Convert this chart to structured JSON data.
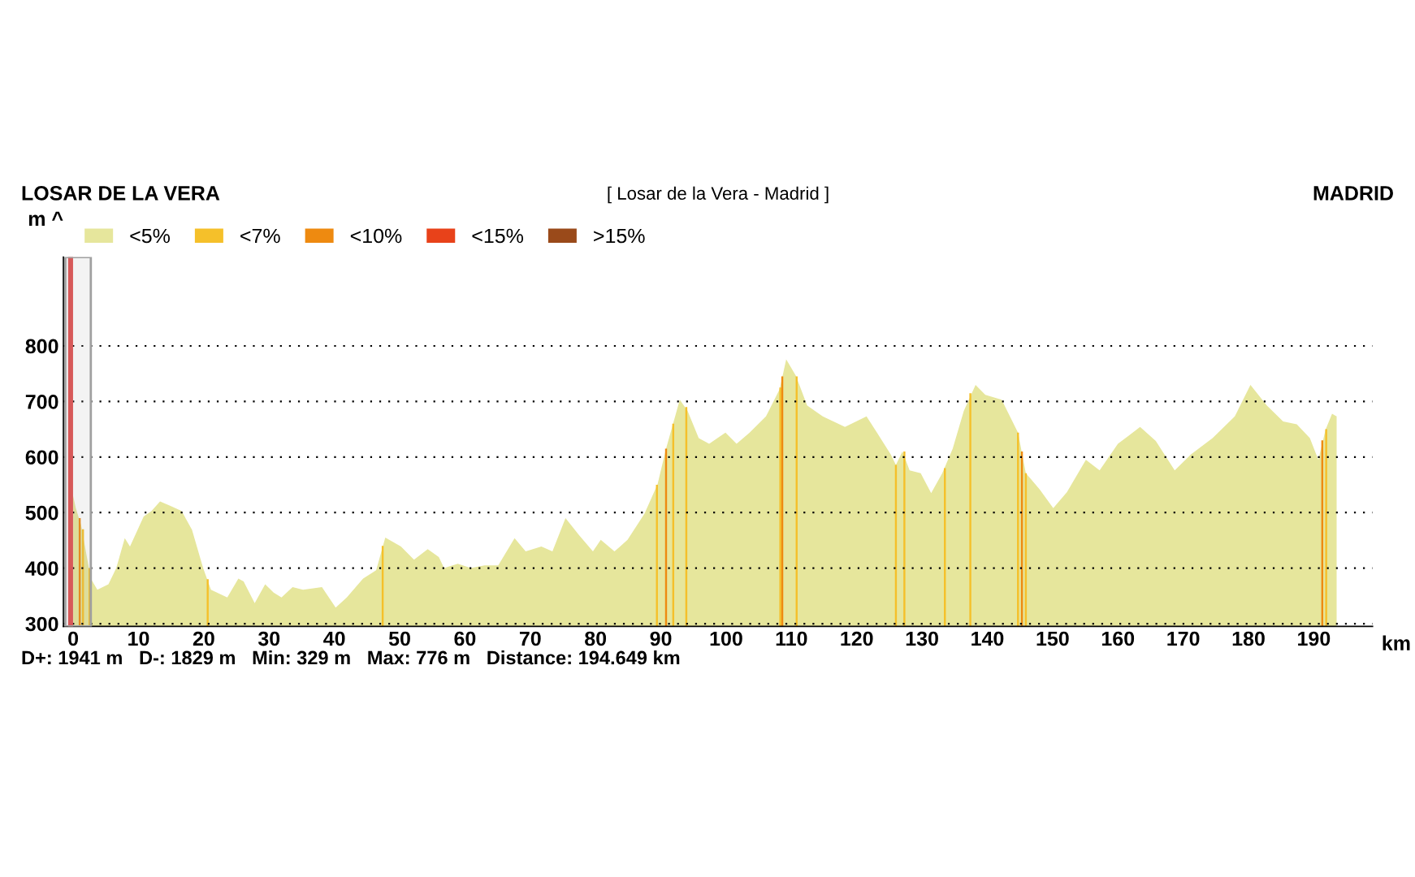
{
  "chart_data": {
    "type": "area",
    "title": "LOSAR DE LA VERA",
    "subtitle": "[ Losar de la Vera - Madrid ]",
    "xlabel": "km",
    "ylabel": "m ^",
    "annotations": [
      "MADRID",
      "D+: 1941 m   D-: 1829 m   Min: 329 m   Max: 776 m   Distance: 194.649 km"
    ],
    "xlim": [
      -1.5,
      199
    ],
    "xticks": [
      0,
      10,
      20,
      30,
      40,
      50,
      60,
      70,
      80,
      90,
      100,
      110,
      120,
      130,
      140,
      150,
      160,
      170,
      180,
      190
    ],
    "ylim": [
      295,
      960
    ],
    "yticks": [
      300,
      400,
      500,
      600,
      700,
      800
    ],
    "grid": "y",
    "legend": "top left",
    "series": [
      {
        "name": "<5%",
        "color": "#e6e69c",
        "x": [
          0,
          0.4,
          1.2,
          2.1,
          2.7,
          3.7,
          5.4,
          6.6,
          7.9,
          8.7,
          10.8,
          12.0,
          13.3,
          14.9,
          16.6,
          18.2,
          19.9,
          21.1,
          23.6,
          25.3,
          26.1,
          27.8,
          29.4,
          30.7,
          31.9,
          33.6,
          35.2,
          38.1,
          40.2,
          41.9,
          44.4,
          46.4,
          47.8,
          50.2,
          52.2,
          54.3,
          56.0,
          56.8,
          58.9,
          60.9,
          63.0,
          65.1,
          67.6,
          69.3,
          71.7,
          73.4,
          75.4,
          77.5,
          79.6,
          80.8,
          82.9,
          84.9,
          87.5,
          89.5,
          90.8,
          92.9,
          94.1,
          95.8,
          97.4,
          99.9,
          101.6,
          103.6,
          106.1,
          108.2,
          109.2,
          110.7,
          112.4,
          114.8,
          118.2,
          121.5,
          123.1,
          125.2,
          126.0,
          127.0,
          128.1,
          129.8,
          131.4,
          133.1,
          134.7,
          136.4,
          138.2,
          139.7,
          142.2,
          144.7,
          145.9,
          148.0,
          150.1,
          152.2,
          155.1,
          157.2,
          160.0,
          161.7,
          163.4,
          165.8,
          168.7,
          171.2,
          174.5,
          177.9,
          180.3,
          182.8,
          185.3,
          187.4,
          189.4,
          190.7,
          191.8,
          192.8,
          193.5
        ],
        "values": [
          530,
          508,
          478,
          420,
          381,
          361,
          371,
          400,
          454,
          439,
          493,
          503,
          520,
          512,
          503,
          469,
          400,
          361,
          347,
          381,
          376,
          337,
          371,
          356,
          347,
          366,
          361,
          366,
          329,
          347,
          381,
          396,
          455,
          439,
          415,
          434,
          420,
          400,
          408,
          400,
          405,
          405,
          454,
          430,
          439,
          430,
          490,
          459,
          430,
          451,
          430,
          451,
          498,
          551,
          615,
          703,
          683,
          634,
          624,
          644,
          624,
          644,
          673,
          722,
          776,
          746,
          693,
          673,
          654,
          673,
          644,
          605,
          586,
          610,
          576,
          571,
          535,
          571,
          615,
          683,
          730,
          712,
          703,
          644,
          571,
          542,
          508,
          537,
          595,
          576,
          624,
          639,
          654,
          629,
          576,
          605,
          634,
          673,
          730,
          693,
          664,
          659,
          634,
          595,
          649,
          678,
          673
        ]
      },
      {
        "name": "<7%",
        "type": "bar",
        "color": "#f5c02a",
        "x": [
          1.5,
          2.5,
          20.6,
          47.4,
          89.4,
          91.9,
          93.9,
          108.3,
          110.8,
          126.0,
          127.3,
          133.5,
          137.4,
          144.7,
          145.9,
          191.9
        ],
        "values": [
          470,
          400,
          380,
          440,
          550,
          660,
          690,
          725,
          745,
          586,
          610,
          580,
          715,
          644,
          571,
          650
        ]
      },
      {
        "name": "<10%",
        "type": "bar",
        "color": "#ee8a10",
        "x": [
          1.0,
          90.8,
          108.6,
          145.3,
          191.3
        ],
        "values": [
          490,
          615,
          745,
          610,
          630
        ]
      },
      {
        "name": "<15%",
        "type": "bar",
        "color": "#e8421a"
      },
      {
        "name": ">15%",
        "type": "bar",
        "color": "#9a4a1a"
      }
    ],
    "ref_lines": [
      {
        "axis": "x",
        "value": -0.4,
        "color": "#e05050",
        "line_style": "solid"
      }
    ],
    "bands": [
      {
        "axis": "x",
        "from": -1.2,
        "to": 2.7,
        "color": "#a0a0a0"
      }
    ]
  }
}
